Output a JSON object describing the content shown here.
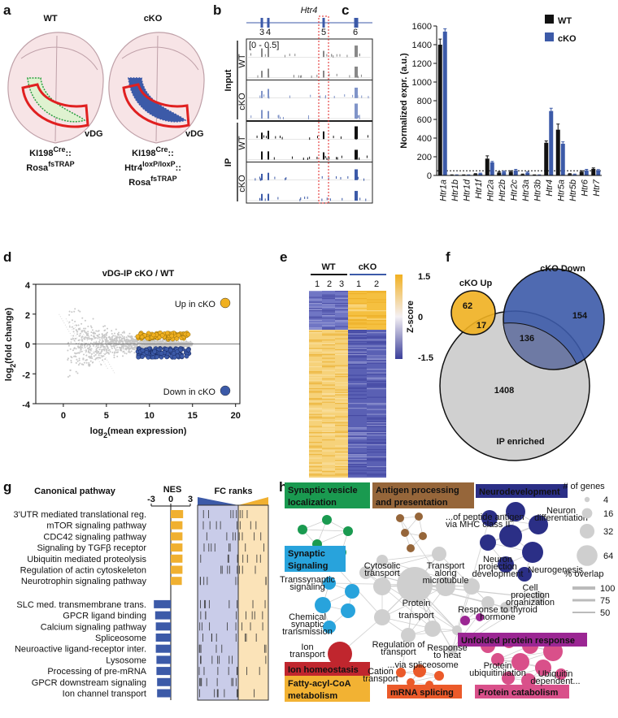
{
  "panels": {
    "a": {
      "label": "a",
      "groups": [
        "WT",
        "cKO"
      ],
      "region": "vDG",
      "genotypes": [
        [
          [
            "KI198",
            "Cre",
            "::"
          ],
          [
            "Rosa",
            "fsTRAP"
          ]
        ],
        [
          [
            "KI198",
            "Cre",
            "::"
          ],
          [
            "Htr4",
            "loxP/loxP",
            "::"
          ],
          [
            "Rosa",
            "fsTRAP"
          ]
        ]
      ]
    },
    "b": {
      "label": "b",
      "gene": "Htr4",
      "exons": [
        "3",
        "4",
        "5",
        "6"
      ],
      "scale": "[0 - 0.5]",
      "groups": [
        "Input",
        "IP"
      ],
      "tracks": [
        "WT",
        "cKO",
        "WT",
        "cKO"
      ]
    },
    "e": {
      "label": "e",
      "groups": [
        "WT",
        "cKO"
      ],
      "wt_samples": [
        1,
        2,
        3
      ],
      "cko_samples": [
        1,
        2
      ],
      "colorbar_ticks": [
        1.5,
        0,
        -1.5
      ],
      "colorbar_label": "Z-score"
    },
    "f": {
      "label": "f",
      "sets": [
        "cKO Up",
        "cKO Down",
        "IP enriched"
      ],
      "counts": {
        "up_only": 62,
        "up_ip": 17,
        "down_ip": 136,
        "down_only": 154,
        "ip_only": 1408
      }
    },
    "h": {
      "label": "h",
      "clusters": [
        {
          "name": [
            "Synaptic vesicle",
            "localization"
          ],
          "color": "#1a9a50"
        },
        {
          "name": [
            "Antigen processing",
            "and presentation"
          ],
          "color": "#96663a"
        },
        {
          "name": [
            "Neurodevelopment"
          ],
          "color": "#2b2f86"
        },
        {
          "name": [
            "Synaptic",
            "Signaling"
          ],
          "color": "#28a3dc"
        },
        {
          "name": [
            "Unfolded protein response"
          ],
          "color": "#9b2693"
        },
        {
          "name": [
            "Ion homeostasis"
          ],
          "color": "#c0262e"
        },
        {
          "name": [
            "Fatty-acyl-CoA",
            "metabolism"
          ],
          "color": "#f2b233"
        },
        {
          "name": [
            "mRNA splicing"
          ],
          "color": "#eb5a2a"
        },
        {
          "name": [
            "Protein catabolism"
          ],
          "color": "#d9508a"
        }
      ],
      "terms": [
        [
          "...of peptide antigen",
          "via MHC class II"
        ],
        [
          "Cytosolic",
          "transport"
        ],
        [
          "Transport",
          "along",
          "microtubule"
        ],
        [
          "Protein",
          "transport"
        ],
        [
          "Neuron",
          "differentiation"
        ],
        [
          "Neuron",
          "projection",
          "development"
        ],
        [
          "Neurogenesis"
        ],
        [
          "Cell",
          "projection",
          "organization"
        ],
        [
          "Response to thyroid",
          "hormone"
        ],
        [
          "Transsynaptic",
          "signaling"
        ],
        [
          "Chemical",
          "synaptic",
          "transmission"
        ],
        [
          "Regulation of",
          "transport"
        ],
        [
          "Response",
          "to heat"
        ],
        [
          "Ion",
          "transport"
        ],
        [
          "Cation",
          "transport"
        ],
        [
          "...via spliceosome"
        ],
        [
          "Protein",
          "ubiquitinilation"
        ],
        [
          "Ubiquitin",
          "dependent..."
        ]
      ],
      "size_legend": {
        "title": "# of genes",
        "values": [
          4,
          16,
          32,
          64
        ]
      },
      "overlap_legend": {
        "title": "% overlap",
        "values": [
          100,
          75,
          50
        ]
      }
    }
  },
  "chart_data": [
    {
      "type": "bar",
      "label": "c",
      "ylabel": "Normalized expr. (a.u.)",
      "categories": [
        "Htr1a",
        "Htr1b",
        "Htr1d",
        "Htr1f",
        "Htr2a",
        "Htr2b",
        "Htr2c",
        "Htr3a",
        "Htr3b",
        "Htr4",
        "Htr5a",
        "Htr5b",
        "Htr6",
        "Htr7"
      ],
      "series": [
        {
          "name": "WT",
          "color": "#111111",
          "values": [
            1400,
            5,
            5,
            15,
            180,
            30,
            40,
            10,
            5,
            350,
            490,
            15,
            40,
            70
          ],
          "errors": [
            60,
            2,
            2,
            5,
            30,
            8,
            10,
            5,
            2,
            20,
            60,
            5,
            10,
            10
          ]
        },
        {
          "name": "cKO",
          "color": "#3c5aa8",
          "values": [
            1540,
            5,
            5,
            20,
            140,
            40,
            55,
            30,
            5,
            690,
            340,
            10,
            55,
            55
          ],
          "errors": [
            30,
            2,
            2,
            5,
            10,
            8,
            10,
            8,
            2,
            30,
            20,
            5,
            10,
            8
          ]
        }
      ],
      "ylim": [
        0,
        1600
      ],
      "yticks": [
        0,
        200,
        400,
        600,
        800,
        1000,
        1200,
        1400,
        1600
      ],
      "reference_line": 50,
      "legend": "upper right"
    },
    {
      "type": "scatter",
      "label": "d",
      "title": "vDG-IP cKO / WT",
      "xlabel": [
        "log",
        "2",
        "(mean expression)"
      ],
      "ylabel": [
        "log",
        "2",
        "(fold change)"
      ],
      "xlim": [
        -3.2,
        20.5
      ],
      "ylim": [
        -4,
        4
      ],
      "xticks": [
        0,
        5,
        10,
        15,
        20
      ],
      "yticks": [
        -4,
        -2,
        0,
        2,
        4
      ],
      "annotations": [
        "Up in cKO",
        "Down in cKO"
      ],
      "up_color": "#f0b020",
      "down_color": "#3c5aa8"
    },
    {
      "type": "hbar",
      "label": "g",
      "title": "Canonical pathway",
      "xlabel": "NES",
      "ranks_title": "FC ranks",
      "categories": [
        "3'UTR mediated translational reg.",
        "mTOR signaling pathway",
        "CDC42 signaling pathway",
        "Signaling by TGFβ receptor",
        "Ubiquitin mediated proteolysis",
        "Regulation of actin cytoskeleton",
        "Neurotrophin signaling pathway",
        "SLC med. transmembrane trans.",
        "GPCR ligand binding",
        "Calcium signaling pathway",
        "Spliceosome",
        "Neuroactive ligand-receptor inter.",
        "Lysosome",
        "Processing of pre-mRNA",
        "GPCR downstream signaling",
        "Ion channel transport"
      ],
      "values": [
        1.9,
        1.8,
        1.8,
        1.8,
        1.8,
        1.8,
        1.7,
        -2.6,
        -2.4,
        -2.3,
        -2.3,
        -2.3,
        -2.2,
        -2.2,
        -2.1,
        -2.1
      ],
      "xlim": [
        -3,
        3
      ],
      "xticks": [
        -3,
        0,
        3
      ],
      "positive_color": "#f0b030",
      "negative_color": "#3c5aa8"
    }
  ]
}
